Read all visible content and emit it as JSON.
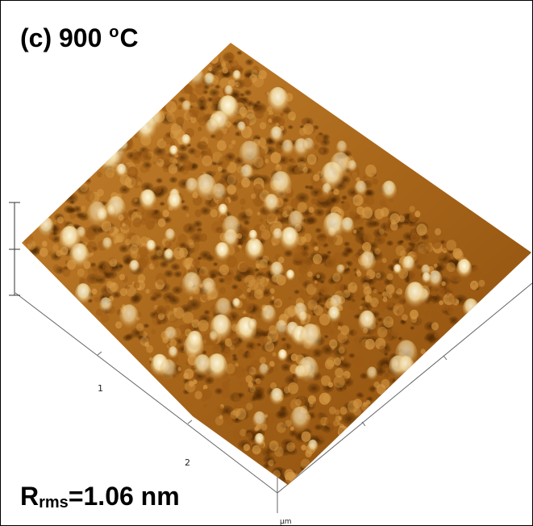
{
  "image": {
    "panel_label": {
      "prefix": "(c) 900 ",
      "degree": "o",
      "unit": "C"
    },
    "roughness": {
      "symbol": "R",
      "subscript": "rms",
      "value": "=1.06 nm"
    },
    "axis": {
      "tick_1": "1",
      "tick_2": "2",
      "unit": "µm"
    },
    "colors": {
      "surface_dark": "#5a3000",
      "surface_mid": "#b8741a",
      "surface_light": "#f3e2b0",
      "axis": "#666666"
    }
  }
}
